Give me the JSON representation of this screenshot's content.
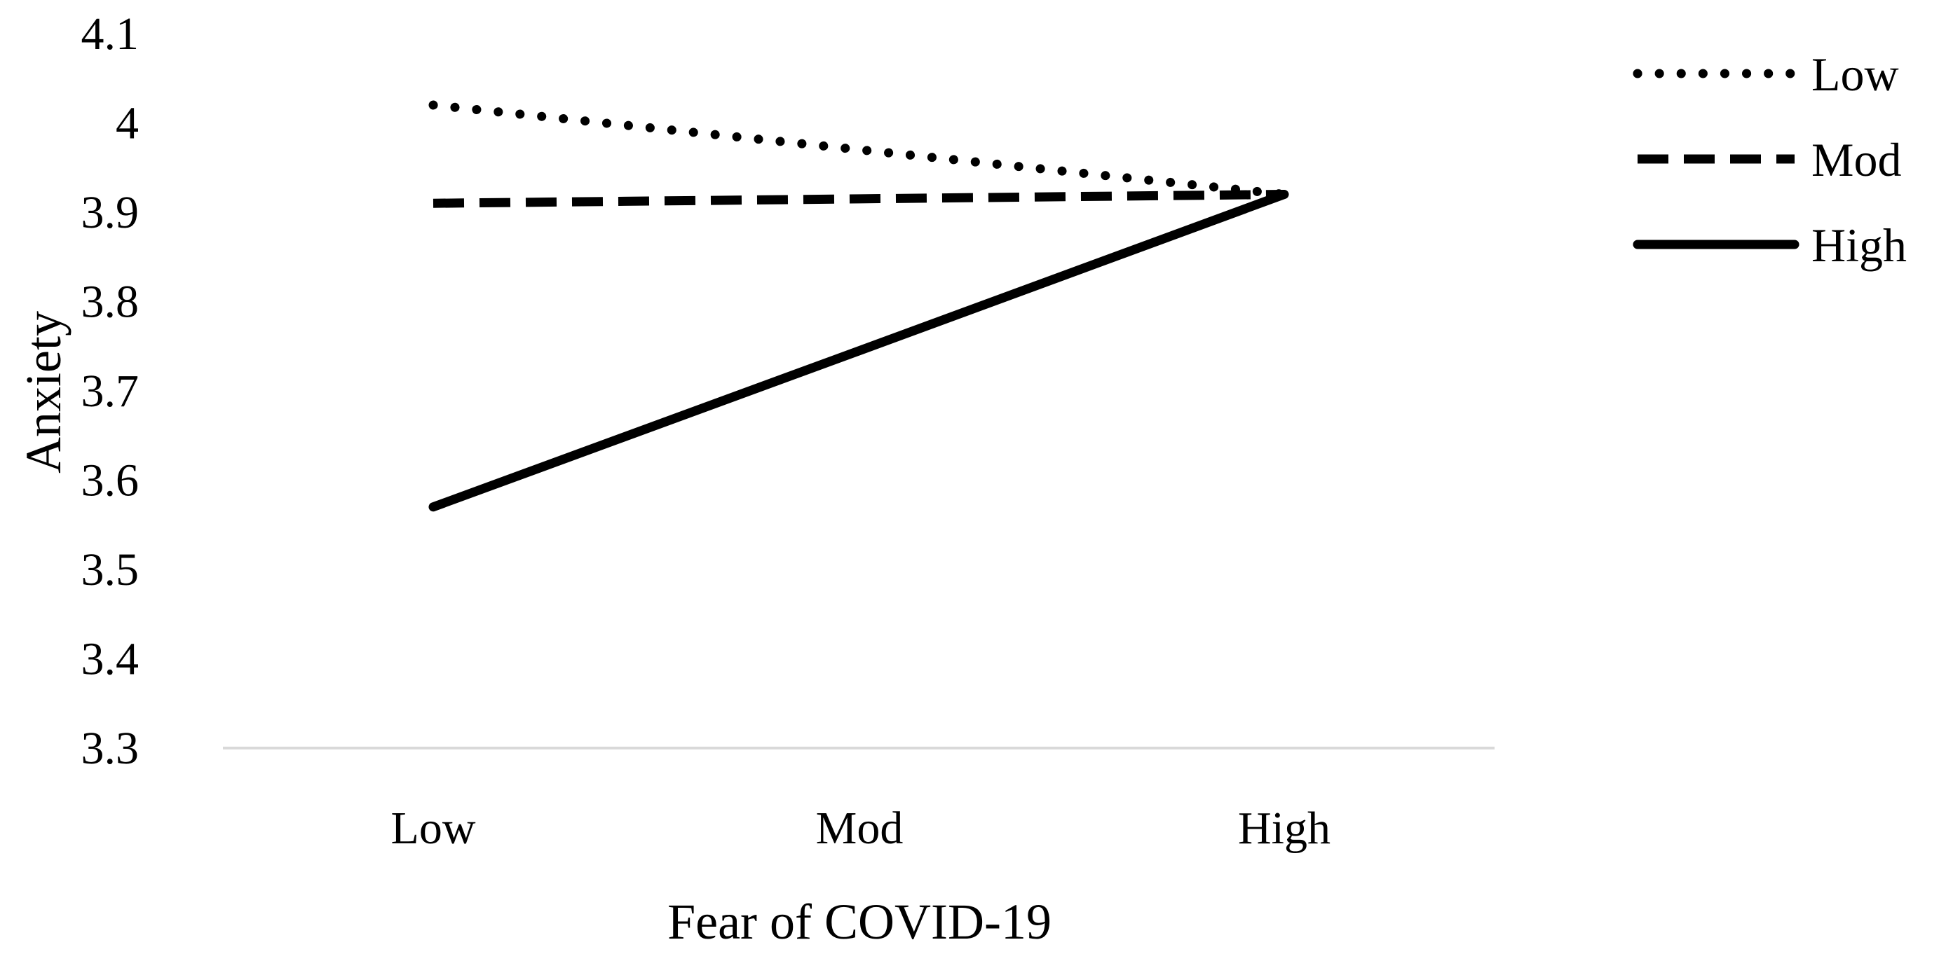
{
  "chart_data": {
    "type": "line",
    "title": "",
    "xlabel": "Fear of COVID-19",
    "ylabel": "Anxiety",
    "categories": [
      "Low",
      "Mod",
      "High"
    ],
    "ylim": [
      3.3,
      4.1
    ],
    "yticks": [
      "3.3",
      "3.4",
      "3.5",
      "3.6",
      "3.7",
      "3.8",
      "3.9",
      "4",
      "4.1"
    ],
    "grid": false,
    "legend_position": "top-right",
    "series": [
      {
        "name": "Low",
        "style": "dotted",
        "color": "#000000",
        "values": [
          4.02,
          3.97,
          3.92
        ]
      },
      {
        "name": "Mod",
        "style": "dashed",
        "color": "#000000",
        "values": [
          3.91,
          3.915,
          3.92
        ]
      },
      {
        "name": "High",
        "style": "solid",
        "color": "#000000",
        "values": [
          3.57,
          3.745,
          3.92
        ]
      }
    ]
  }
}
